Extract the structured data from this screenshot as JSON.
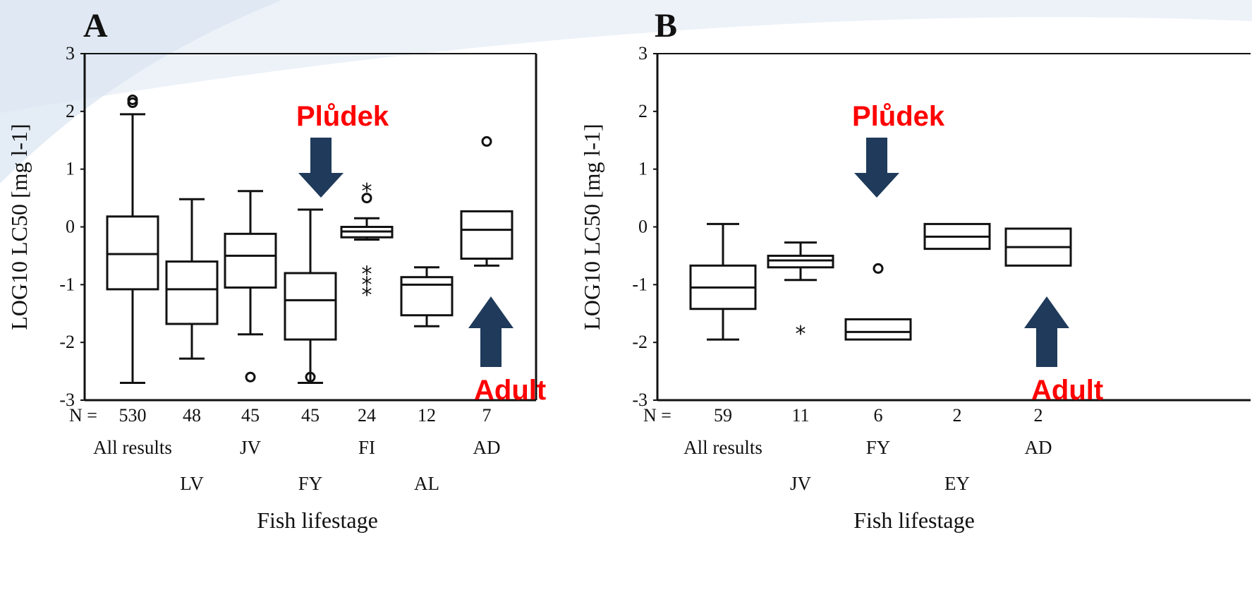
{
  "colors": {
    "arrow": "#1f3a5a",
    "annotation_text": "#ff0000",
    "axis": "#111111",
    "background_accent": "#dde7f2"
  },
  "chart_data": [
    {
      "type": "box",
      "panel": "A",
      "ylabel": "LOG10 LC50 [mg l-1]",
      "xlabel": "Fish lifestage",
      "ylim": [
        -3,
        3
      ],
      "yticks": [
        3,
        2,
        1,
        0,
        -1,
        -2,
        -3
      ],
      "n_prefix": "N =",
      "categories": [
        {
          "label": "All results",
          "n": "530",
          "whisker_low": -2.7,
          "q1": -1.08,
          "median": -0.47,
          "q3": 0.18,
          "whisker_high": 1.95,
          "outliers": [
            {
              "y": 2.2,
              "marker": "o"
            },
            {
              "y": 2.15,
              "marker": "o"
            }
          ]
        },
        {
          "label": "LV",
          "n": "48",
          "whisker_low": -2.28,
          "q1": -1.68,
          "median": -1.08,
          "q3": -0.6,
          "whisker_high": 0.48,
          "outliers": []
        },
        {
          "label": "JV",
          "n": "45",
          "whisker_low": -1.86,
          "q1": -1.05,
          "median": -0.5,
          "q3": -0.12,
          "whisker_high": 0.62,
          "outliers": [
            {
              "y": -2.6,
              "marker": "o"
            }
          ]
        },
        {
          "label": "FY",
          "n": "45",
          "whisker_low": -2.7,
          "q1": -1.95,
          "median": -1.27,
          "q3": -0.8,
          "whisker_high": 0.3,
          "outliers": [
            {
              "y": -2.6,
              "marker": "o"
            }
          ]
        },
        {
          "label": "FI",
          "n": "24",
          "whisker_low": -0.22,
          "q1": -0.18,
          "median": -0.08,
          "q3": 0.0,
          "whisker_high": 0.15,
          "outliers": [
            {
              "y": 0.5,
              "marker": "o"
            },
            {
              "y": 0.62,
              "marker": "*"
            },
            {
              "y": -0.82,
              "marker": "*"
            },
            {
              "y": -1.0,
              "marker": "*"
            },
            {
              "y": -1.18,
              "marker": "*"
            }
          ]
        },
        {
          "label": "AL",
          "n": "12",
          "whisker_low": -1.72,
          "q1": -1.53,
          "median": -1.0,
          "q3": -0.87,
          "whisker_high": -0.7,
          "outliers": []
        },
        {
          "label": "AD",
          "n": "7",
          "whisker_low": -0.67,
          "q1": -0.55,
          "median": -0.05,
          "q3": 0.27,
          "whisker_high": 0.27,
          "outliers": [
            {
              "y": 1.48,
              "marker": "o"
            }
          ]
        }
      ],
      "annotations": [
        {
          "text": "Plůdek",
          "points_to": "FY",
          "arrow": "down"
        },
        {
          "text": "Adult",
          "points_to": "AD",
          "arrow": "up"
        }
      ]
    },
    {
      "type": "box",
      "panel": "B",
      "ylabel": "LOG10 LC50 [mg l-1]",
      "xlabel": "Fish lifestage",
      "ylim": [
        -3,
        3
      ],
      "yticks": [
        3,
        2,
        1,
        0,
        -1,
        -2,
        -3
      ],
      "n_prefix": "N =",
      "categories": [
        {
          "label": "All results",
          "n": "59",
          "whisker_low": -1.95,
          "q1": -1.42,
          "median": -1.05,
          "q3": -0.67,
          "whisker_high": 0.05,
          "outliers": []
        },
        {
          "label": "JV",
          "n": "11",
          "whisker_low": -0.92,
          "q1": -0.7,
          "median": -0.58,
          "q3": -0.5,
          "whisker_high": -0.27,
          "outliers": [
            {
              "y": -1.85,
              "marker": "*"
            }
          ]
        },
        {
          "label": "FY",
          "n": "6",
          "whisker_low": -1.95,
          "q1": -1.95,
          "median": -1.82,
          "q3": -1.6,
          "whisker_high": -1.6,
          "outliers": [
            {
              "y": -0.72,
              "marker": "o"
            }
          ]
        },
        {
          "label": "EY",
          "n": "2",
          "whisker_low": -0.38,
          "q1": -0.38,
          "median": -0.17,
          "q3": 0.05,
          "whisker_high": 0.05,
          "outliers": []
        },
        {
          "label": "AD",
          "n": "2",
          "whisker_low": -0.67,
          "q1": -0.67,
          "median": -0.35,
          "q3": -0.03,
          "whisker_high": -0.03,
          "outliers": []
        }
      ],
      "annotations": [
        {
          "text": "Plůdek",
          "points_to": "FY",
          "arrow": "down"
        },
        {
          "text": "Adult",
          "points_to": "AD",
          "arrow": "up"
        }
      ]
    }
  ]
}
